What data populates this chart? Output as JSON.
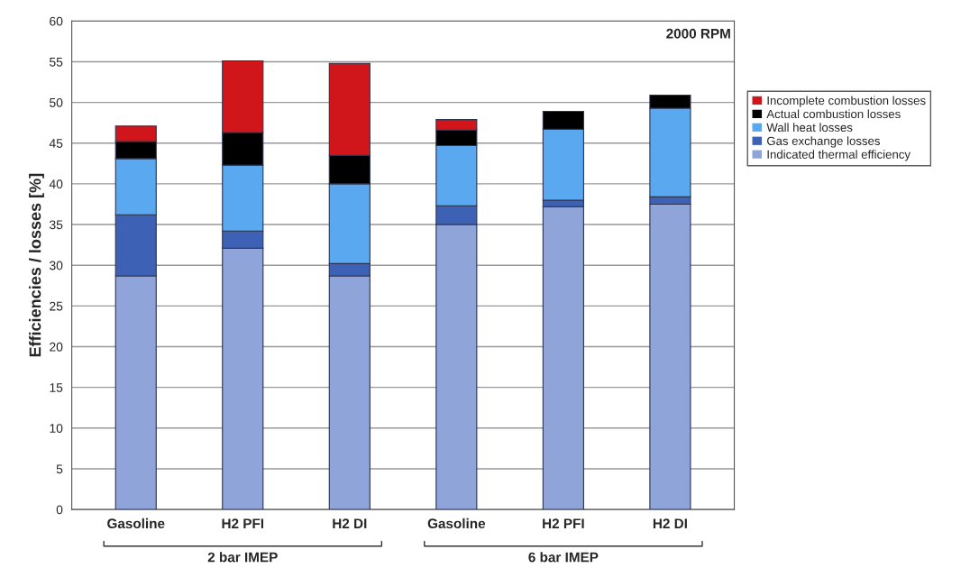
{
  "chart_data": {
    "type": "bar",
    "stacked": true,
    "ylabel": "Efficiencies / losses [%]",
    "categories": [
      "Gasoline",
      "H2 PFI",
      "H2 DI",
      "Gasoline",
      "H2 PFI",
      "H2 DI"
    ],
    "series": [
      {
        "name": "Indicated thermal efficiency",
        "color": "#8fa4d8",
        "values": [
          28.7,
          32.1,
          28.7,
          35.0,
          37.2,
          37.5
        ]
      },
      {
        "name": "Gas exchange losses",
        "color": "#3d62b5",
        "values": [
          7.5,
          2.1,
          1.5,
          2.3,
          0.8,
          0.9
        ]
      },
      {
        "name": "Wall heat losses",
        "color": "#5aa9f0",
        "values": [
          6.9,
          8.1,
          9.8,
          7.4,
          8.7,
          10.9
        ]
      },
      {
        "name": "Actual combustion losses",
        "color": "#000000",
        "values": [
          2.1,
          4.0,
          3.5,
          1.9,
          2.2,
          1.6
        ]
      },
      {
        "name": "Incomplete combustion losses",
        "color": "#d0161b",
        "values": [
          1.9,
          8.8,
          11.3,
          1.3,
          null,
          null
        ]
      }
    ],
    "ylim": [
      0,
      60
    ],
    "yticks": [
      0,
      5,
      10,
      15,
      20,
      25,
      30,
      35,
      40,
      45,
      50,
      55,
      60
    ],
    "grid": "y",
    "legend": "right",
    "annotations": [
      "2000 RPM",
      "2 bar IMEP",
      "6 bar IMEP"
    ]
  }
}
